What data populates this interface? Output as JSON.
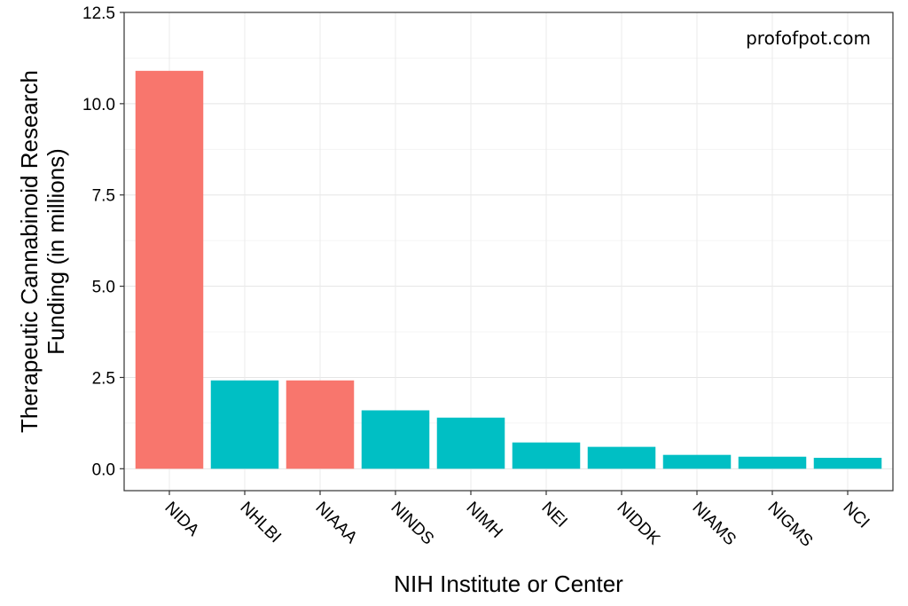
{
  "chart_data": {
    "type": "bar",
    "categories": [
      "NIDA",
      "NHLBI",
      "NIAAA",
      "NINDS",
      "NIMH",
      "NEI",
      "NIDDK",
      "NIAMS",
      "NIGMS",
      "NCI"
    ],
    "values": [
      10.9,
      2.42,
      2.42,
      1.6,
      1.4,
      0.72,
      0.6,
      0.38,
      0.33,
      0.3
    ],
    "bar_colors": [
      "#F8766D",
      "#00BFC4",
      "#F8766D",
      "#00BFC4",
      "#00BFC4",
      "#00BFC4",
      "#00BFC4",
      "#00BFC4",
      "#00BFC4",
      "#00BFC4"
    ],
    "xlabel": "NIH Institute or Center",
    "ylabel_lines": [
      "Therapeutic Cannabinoid Research",
      "Funding (in millions)"
    ],
    "ylim": [
      -0.6,
      12.5
    ],
    "yticks": [
      0.0,
      2.5,
      5.0,
      7.5,
      10.0,
      12.5
    ],
    "ytick_labels": [
      "0.0",
      "2.5",
      "5.0",
      "7.5",
      "10.0",
      "12.5"
    ],
    "annotation": "profofpot.com",
    "grid": true,
    "legend": "none"
  }
}
